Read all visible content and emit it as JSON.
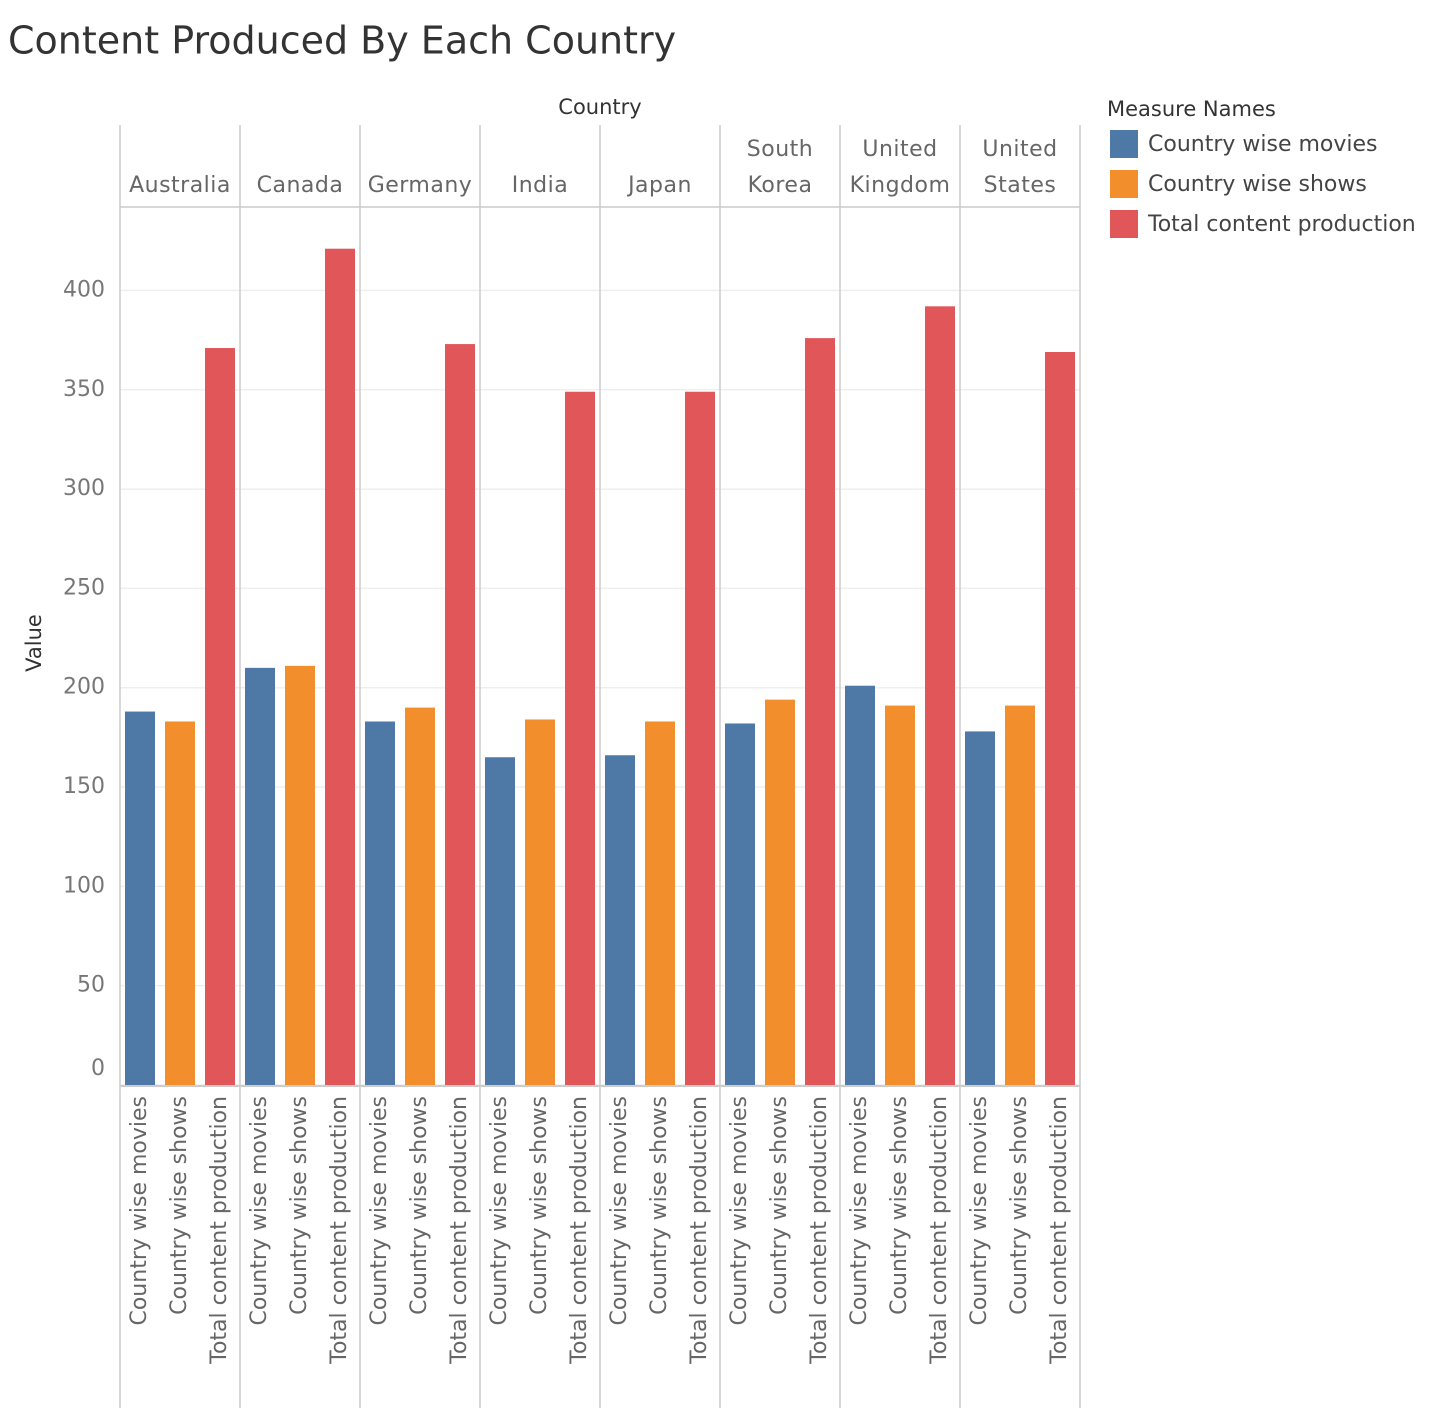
{
  "chart_data": {
    "type": "grouped_bar",
    "title": "Content Produced By Each Country",
    "x_label": "Country",
    "y_label": "Value",
    "legend_title": "Measure Names",
    "legend": "right",
    "grid": true,
    "categories": [
      "Australia",
      "Canada",
      "Germany",
      "India",
      "Japan",
      "South Korea",
      "United Kingdom",
      "United States"
    ],
    "series": [
      {
        "name": "Country wise movies",
        "color": "#4e79a7",
        "values": [
          188,
          210,
          183,
          165,
          166,
          182,
          201,
          178
        ]
      },
      {
        "name": "Country wise shows",
        "color": "#f28e2b",
        "values": [
          183,
          211,
          190,
          184,
          183,
          194,
          191,
          191
        ]
      },
      {
        "name": "Total content production",
        "color": "#e15759",
        "values": [
          371,
          421,
          373,
          349,
          349,
          376,
          392,
          369
        ]
      }
    ],
    "ylim": [
      0,
      442
    ],
    "yticks": [
      0,
      50,
      100,
      150,
      200,
      250,
      300,
      350,
      400
    ]
  }
}
